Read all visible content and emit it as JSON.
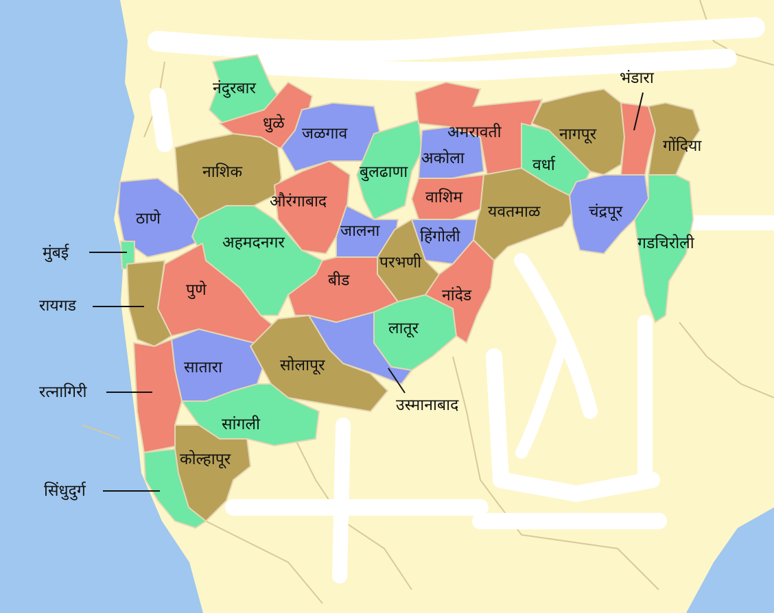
{
  "map": {
    "colors": {
      "sea": "#9fc7ef",
      "land_outside": "#fdf6c8",
      "border": "#d8c99a",
      "erased_white": "#ffffff",
      "red": "#ef8572",
      "blue": "#8a9af0",
      "green": "#6ee8a4",
      "olive": "#b8a157"
    },
    "districts": {
      "nandurbar": "नंदुरबार",
      "dhule": "धुळे",
      "jalgaon": "जळगाव",
      "nashik": "नाशिक",
      "thane": "ठाणे",
      "mumbai": "मुंबई",
      "aurangabad": "औरंगाबाद",
      "buldhana": "बुलढाणा",
      "akola": "अकोला",
      "amravati": "अमरावती",
      "washim": "वाशिम",
      "ahmednagar": "अहमदनगर",
      "jalna": "जालना",
      "hingoli": "हिंगोली",
      "parbhani": "परभणी",
      "beed": "बीड",
      "pune": "पुणे",
      "raigad": "रायगड",
      "satara": "सातारा",
      "solapur": "सोलापूर",
      "latur": "लातूर",
      "nanded": "नांदेड",
      "osmanabad": "उस्मानाबाद",
      "ratnagiri": "रत्नागिरी",
      "sangli": "सांगली",
      "kolhapur": "कोल्हापूर",
      "sindhudurg": "सिंधुदुर्ग",
      "yavatmal": "यवतमाळ",
      "wardha": "वर्धा",
      "nagpur": "नागपूर",
      "bhandara": "भंडारा",
      "gondiya": "गोंदिया",
      "chandrapur": "चंद्रपूर",
      "gadchiroli": "गडचिरोली"
    }
  }
}
